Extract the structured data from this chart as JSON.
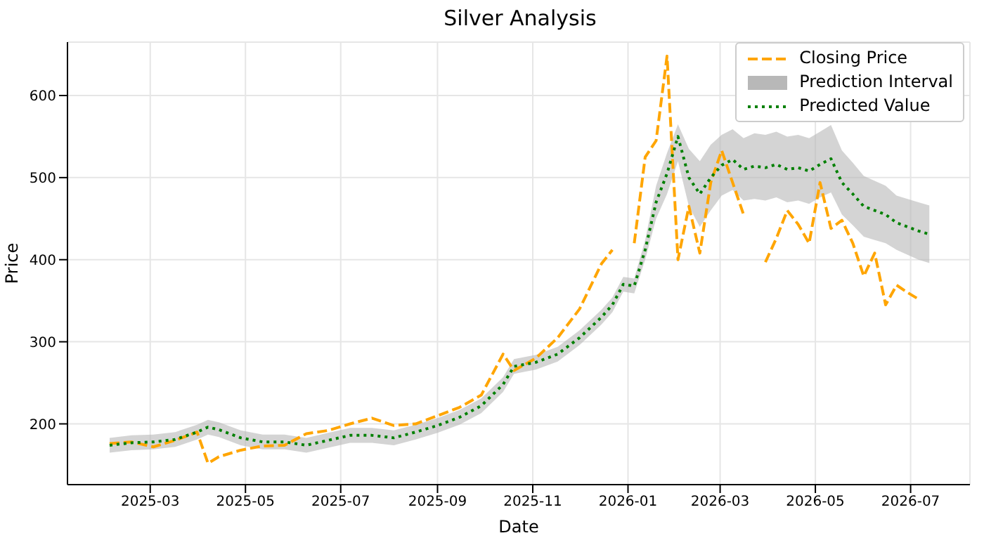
{
  "chart_data": {
    "type": "line",
    "title": "Silver Analysis",
    "xlabel": "Date",
    "ylabel": "Price",
    "x": [
      "2025-02-03",
      "2025-02-17",
      "2025-03-03",
      "2025-03-17",
      "2025-03-31",
      "2025-04-07",
      "2025-04-14",
      "2025-04-28",
      "2025-05-12",
      "2025-05-26",
      "2025-06-09",
      "2025-06-23",
      "2025-07-07",
      "2025-07-21",
      "2025-08-04",
      "2025-08-18",
      "2025-09-01",
      "2025-09-15",
      "2025-09-29",
      "2025-10-13",
      "2025-10-20",
      "2025-11-03",
      "2025-11-17",
      "2025-12-01",
      "2025-12-15",
      "2025-12-22",
      "2025-12-29",
      "2026-01-05",
      "2026-01-12",
      "2026-01-19",
      "2026-01-26",
      "2026-02-02",
      "2026-02-09",
      "2026-02-16",
      "2026-02-23",
      "2026-03-02",
      "2026-03-09",
      "2026-03-16",
      "2026-03-23",
      "2026-03-30",
      "2026-04-06",
      "2026-04-13",
      "2026-04-20",
      "2026-04-27",
      "2026-05-04",
      "2026-05-11",
      "2026-05-18",
      "2026-05-25",
      "2026-06-01",
      "2026-06-08",
      "2026-06-15",
      "2026-06-22",
      "2026-06-29",
      "2026-07-06",
      "2026-07-13"
    ],
    "series": [
      {
        "name": "Closing Price",
        "color": "#ffa500",
        "line_style": "dashed",
        "values": [
          176,
          178,
          172,
          180,
          190,
          152,
          160,
          168,
          173,
          174,
          188,
          192,
          200,
          207,
          198,
          200,
          210,
          220,
          235,
          285,
          265,
          280,
          305,
          340,
          395,
          412,
          null,
          420,
          525,
          545,
          648,
          400,
          465,
          408,
          494,
          533,
          494,
          455,
          null,
          397,
          426,
          460,
          443,
          420,
          494,
          438,
          448,
          420,
          380,
          408,
          345,
          369,
          360,
          352,
          null
        ]
      },
      {
        "name": "Predicted Value",
        "color": "#008000",
        "line_style": "dotted",
        "values": [
          174,
          177,
          178,
          181,
          190,
          196,
          193,
          183,
          178,
          178,
          174,
          180,
          186,
          186,
          183,
          190,
          198,
          208,
          222,
          248,
          270,
          275,
          285,
          305,
          330,
          345,
          370,
          368,
          412,
          470,
          505,
          550,
          500,
          480,
          500,
          515,
          522,
          510,
          514,
          512,
          516,
          510,
          512,
          508,
          516,
          523,
          494,
          480,
          465,
          460,
          455,
          445,
          440,
          435,
          431
        ],
        "lower": [
          165,
          168,
          169,
          172,
          181,
          187,
          184,
          174,
          169,
          169,
          165,
          171,
          177,
          177,
          174,
          181,
          189,
          199,
          213,
          239,
          261,
          266,
          276,
          296,
          321,
          336,
          361,
          359,
          400,
          450,
          480,
          520,
          465,
          440,
          460,
          478,
          485,
          472,
          474,
          472,
          476,
          470,
          472,
          468,
          476,
          482,
          455,
          442,
          428,
          424,
          420,
          412,
          406,
          400,
          396
        ],
        "upper": [
          183,
          186,
          187,
          190,
          199,
          205,
          202,
          192,
          187,
          187,
          183,
          189,
          195,
          195,
          192,
          199,
          207,
          217,
          231,
          257,
          279,
          284,
          294,
          314,
          339,
          354,
          379,
          377,
          424,
          490,
          530,
          565,
          535,
          520,
          540,
          552,
          559,
          548,
          554,
          552,
          556,
          550,
          552,
          548,
          556,
          564,
          533,
          518,
          502,
          496,
          490,
          478,
          474,
          470,
          466
        ]
      }
    ],
    "annotations": [
      "Prediction Interval"
    ],
    "xlim": [
      "2025-01-07",
      "2026-08-08"
    ],
    "xticks": [
      "2025-03",
      "2025-05",
      "2025-07",
      "2025-09",
      "2025-11",
      "2026-01",
      "2026-03",
      "2026-05",
      "2026-07"
    ],
    "ylim": [
      126,
      665
    ],
    "yticks": [
      200,
      300,
      400,
      500,
      600
    ],
    "grid": true,
    "legend": "top right",
    "marker": "none"
  }
}
